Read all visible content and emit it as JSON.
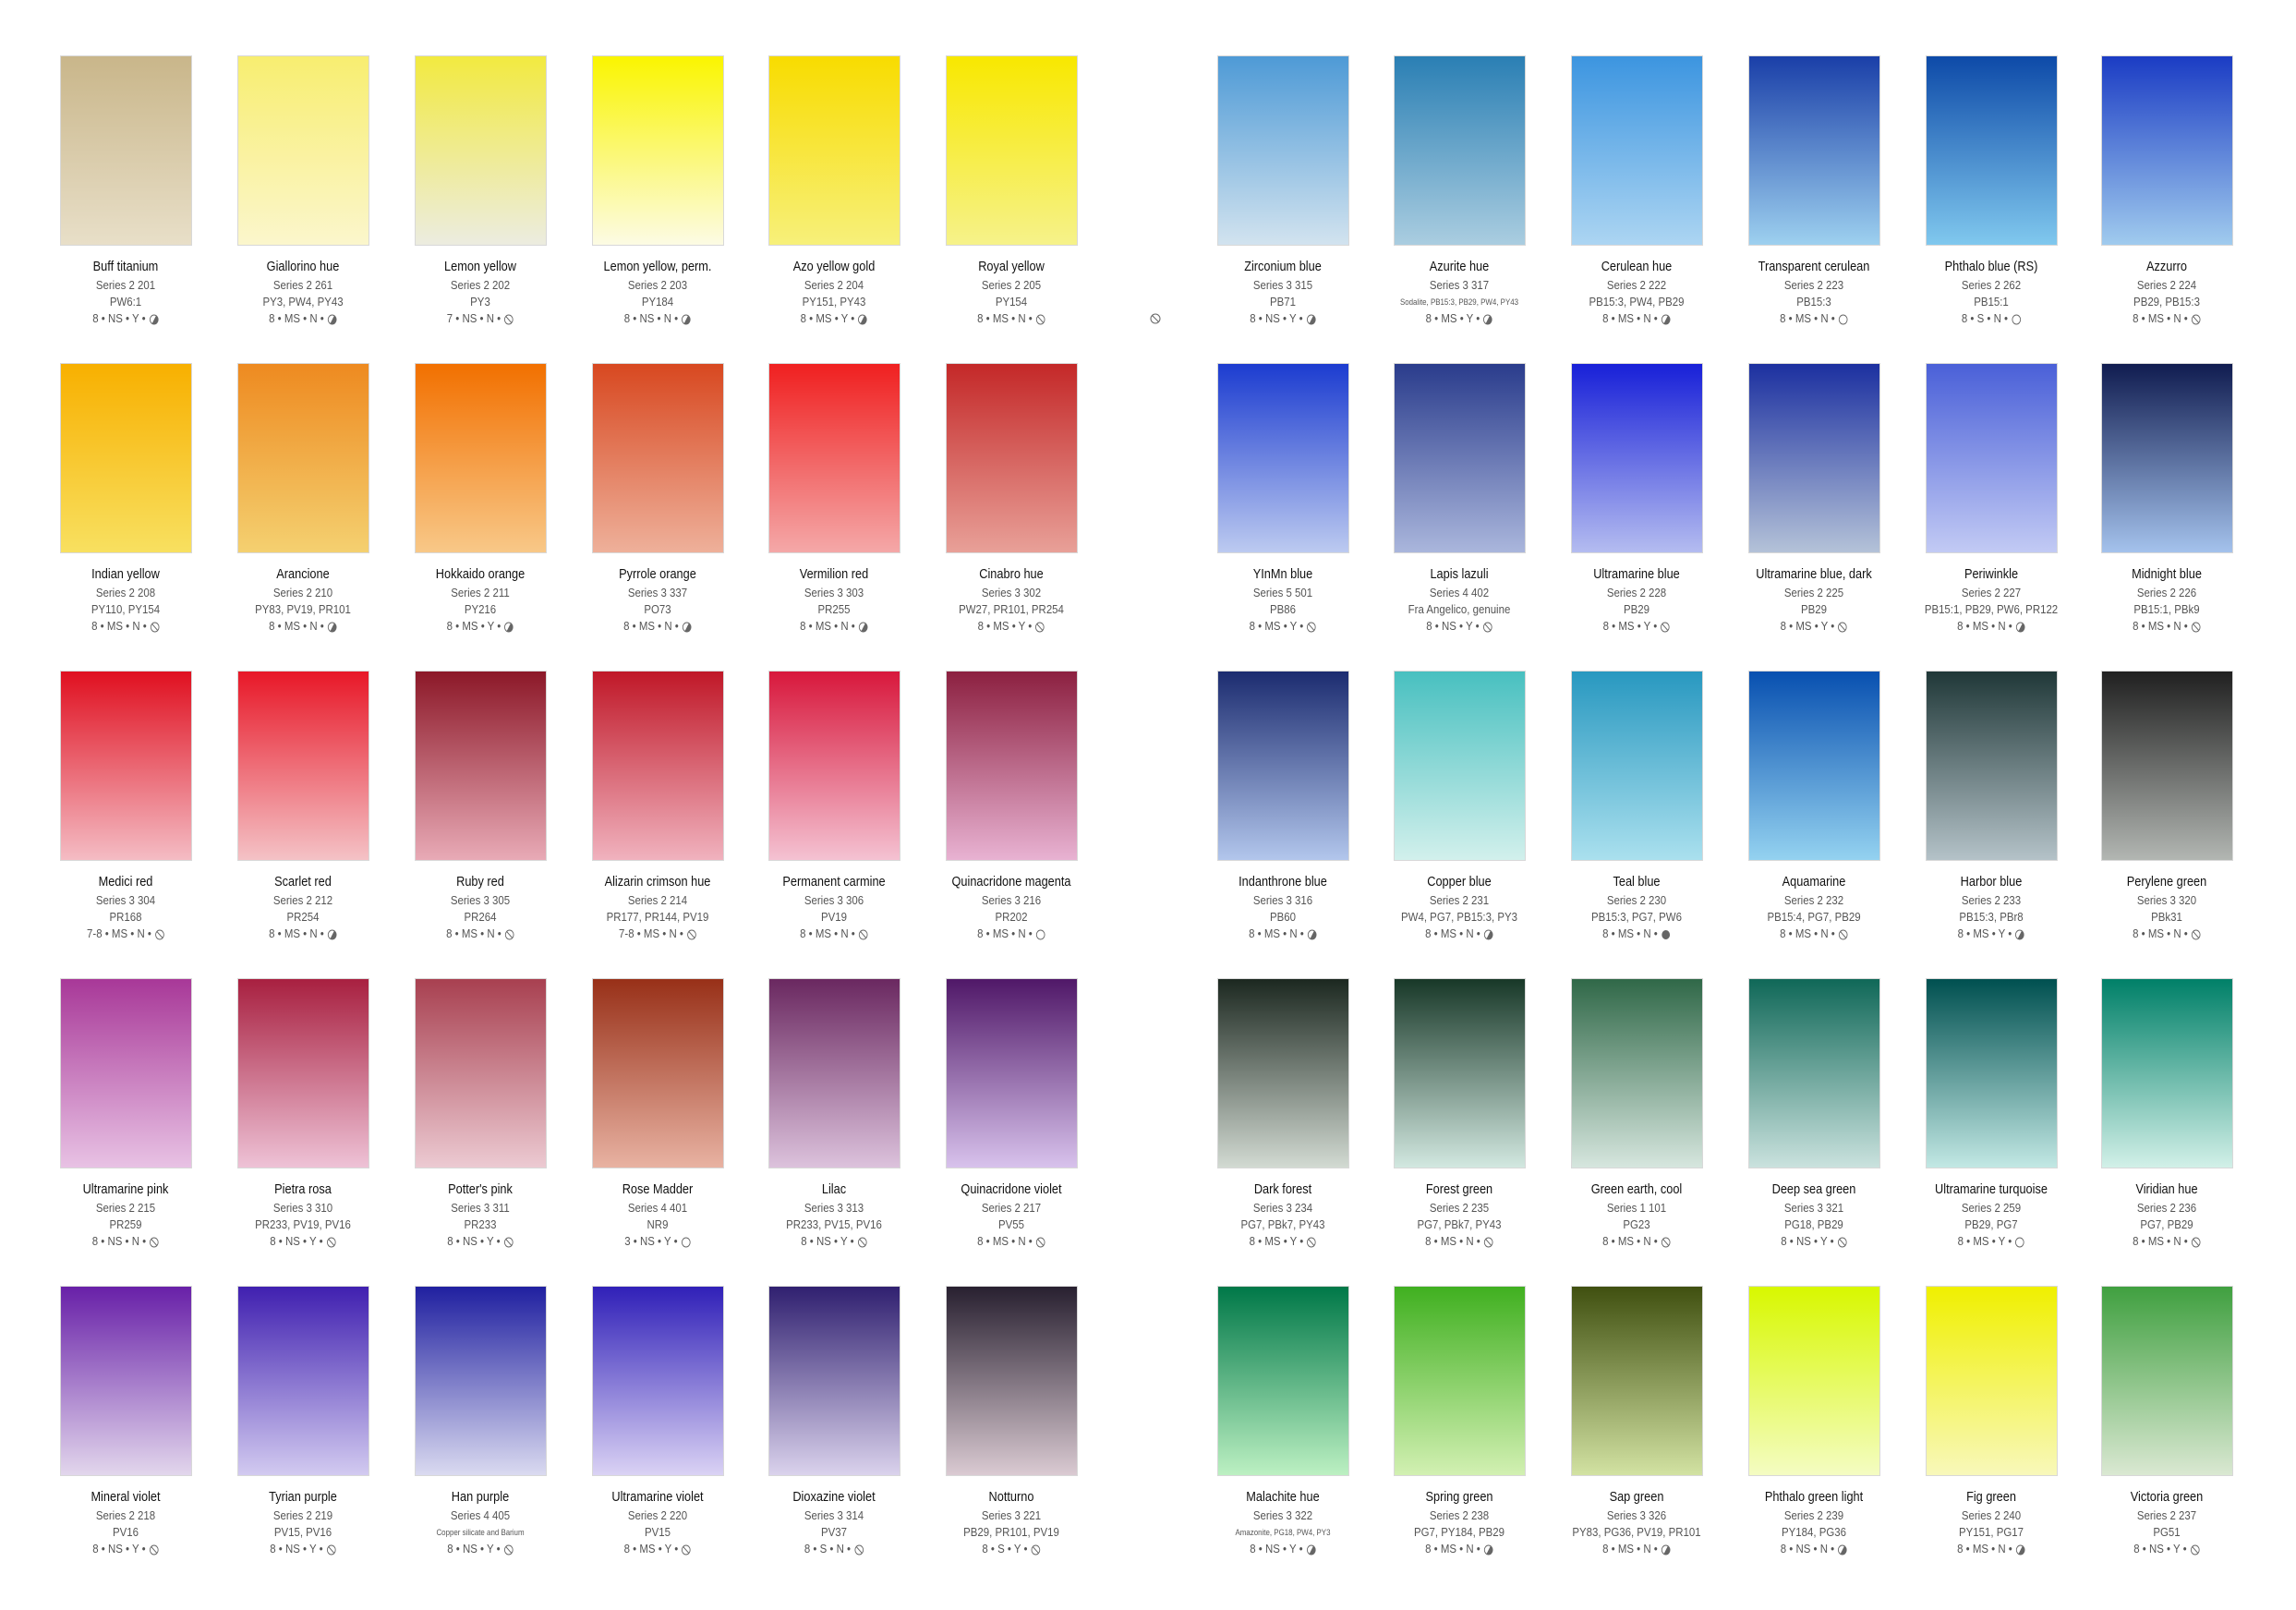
{
  "stray_icon": "slash",
  "icon_legend": {
    "full": "filled-circle",
    "half": "half-filled-circle",
    "empty": "empty-circle",
    "slash": "slashed-circle"
  },
  "rows": [
    {
      "left": [
        {
          "name": "Buff titanium",
          "series": "Series 2   201",
          "pigments": "PW6:1",
          "rating": "8 • NS • Y •",
          "icon": "half",
          "top": "#c9b68a",
          "bottom": "#e8dfc8"
        },
        {
          "name": "Giallorino hue",
          "series": "Series 2  261",
          "pigments": "PY3, PW4, PY43",
          "rating": "8 • MS • N •",
          "icon": "half",
          "top": "#f8ee70",
          "bottom": "#fbf6cc"
        },
        {
          "name": "Lemon yellow",
          "series": "Series 2   202",
          "pigments": "PY3",
          "rating": "7 • NS • N •",
          "icon": "slash",
          "top": "#f2ea40",
          "bottom": "#ecece0"
        },
        {
          "name": "Lemon yellow, perm.",
          "series": "Series 2  203",
          "pigments": "PY184",
          "rating": "8 • NS • N •",
          "icon": "half",
          "top": "#faf500",
          "bottom": "#fcfbe4"
        },
        {
          "name": "Azo yellow gold",
          "series": "Series 2   204",
          "pigments": "PY151, PY43",
          "rating": "8 • MS • Y •",
          "icon": "half",
          "top": "#f8dc00",
          "bottom": "#f7f07a"
        },
        {
          "name": "Royal yellow",
          "series": "Series 2   205",
          "pigments": "PY154",
          "rating": "8 • MS • N •",
          "icon": "slash",
          "top": "#f8e800",
          "bottom": "#f6f28a"
        }
      ],
      "right": [
        {
          "name": "Zirconium blue",
          "series": "Series 3   315",
          "pigments": "PB71",
          "rating": "8 • NS • Y •",
          "icon": "half",
          "top": "#4e9ad6",
          "bottom": "#d2e3ef"
        },
        {
          "name": "Azurite hue",
          "series": "Series 3   317",
          "pigments": "Sodalite, PB15:3, PB29, PW4, PY43",
          "small": true,
          "rating": "8 • MS • Y •",
          "icon": "half",
          "top": "#2a7fb4",
          "bottom": "#aacde0"
        },
        {
          "name": "Cerulean hue",
          "series": "Series 2   222",
          "pigments": "PB15:3, PW4, PB29",
          "rating": "8 • MS • N •",
          "icon": "half",
          "top": "#3c95e0",
          "bottom": "#acd5f2"
        },
        {
          "name": "Transparent cerulean",
          "series": "Series 2   223",
          "pigments": "PB15:3",
          "rating": "8 • MS • N •",
          "icon": "empty",
          "top": "#1a3fa8",
          "bottom": "#9dd0ef"
        },
        {
          "name": "Phthalo blue (RS)",
          "series": "Series 2   262",
          "pigments": "PB15:1",
          "rating": "8 • S • N •",
          "icon": "empty",
          "top": "#0d4aa8",
          "bottom": "#80c8ee"
        },
        {
          "name": "Azzurro",
          "series": "Series 2   224",
          "pigments": "PB29, PB15:3",
          "rating": "8 • MS • N •",
          "icon": "slash",
          "top": "#1b3cc4",
          "bottom": "#a0cbee"
        }
      ]
    },
    {
      "left": [
        {
          "name": "Indian yellow",
          "series": "Series 2   208",
          "pigments": "PY110, PY154",
          "rating": "8 • MS • N •",
          "icon": "slash",
          "top": "#f8b000",
          "bottom": "#f8e060"
        },
        {
          "name": "Arancione",
          "series": "Series 2   210",
          "pigments": "PY83, PV19, PR101",
          "rating": "8 • MS • N •",
          "icon": "half",
          "top": "#ee8a20",
          "bottom": "#f4d070"
        },
        {
          "name": "Hokkaido orange",
          "series": "Series 2   211",
          "pigments": "PY216",
          "rating": "8 • MS • Y •",
          "icon": "half",
          "top": "#f27000",
          "bottom": "#f8c888"
        },
        {
          "name": "Pyrrole orange",
          "series": "Series 3   337",
          "pigments": "PO73",
          "rating": "8 • MS • N •",
          "icon": "half",
          "top": "#d84820",
          "bottom": "#eeb09a"
        },
        {
          "name": "Vermilion red",
          "series": "Series 3   303",
          "pigments": "PR255",
          "rating": "8 • MS • N •",
          "icon": "half",
          "top": "#f02020",
          "bottom": "#f4a8a8"
        },
        {
          "name": "Cinabro hue",
          "series": "Series 3   302",
          "pigments": "PW27, PR101, PR254",
          "rating": "8 • MS • Y •",
          "icon": "slash",
          "top": "#c42828",
          "bottom": "#e8a098"
        }
      ],
      "right": [
        {
          "name": "YInMn blue",
          "series": "Series 5   501",
          "pigments": "PB86",
          "rating": "8 • MS • Y •",
          "icon": "slash",
          "top": "#1c3cd0",
          "bottom": "#bccaf0"
        },
        {
          "name": "Lapis lazuli",
          "series": "Series 4   402",
          "pigments": "Fra Angelico, genuine",
          "rating": "8 • NS • Y •",
          "icon": "slash",
          "top": "#2a3c8c",
          "bottom": "#aab6dc"
        },
        {
          "name": "Ultramarine blue",
          "series": "Series 2   228",
          "pigments": "PB29",
          "rating": "8 • MS • Y •",
          "icon": "slash",
          "top": "#1820d8",
          "bottom": "#b4bcf0"
        },
        {
          "name": "Ultramarine blue, dark",
          "series": "Series 2   225",
          "pigments": "PB29",
          "rating": "8 • MS • Y •",
          "icon": "slash",
          "top": "#1c30a0",
          "bottom": "#b4c2d8"
        },
        {
          "name": "Periwinkle",
          "series": "Series 2   227",
          "pigments": "PB15:1, PB29, PW6, PR122",
          "rating": "8 • MS • N •",
          "icon": "half",
          "top": "#4a60d8",
          "bottom": "#c2caf4"
        },
        {
          "name": "Midnight blue",
          "series": "Series 2   226",
          "pigments": "PB15:1, PBk9",
          "rating": "8 • MS • N •",
          "icon": "slash",
          "top": "#101c50",
          "bottom": "#a4c2ec"
        }
      ]
    },
    {
      "left": [
        {
          "name": "Medici red",
          "series": "Series 3   304",
          "pigments": "PR168",
          "rating": "7-8 • MS • N •",
          "icon": "slash",
          "top": "#e01020",
          "bottom": "#f4bcc4"
        },
        {
          "name": "Scarlet red",
          "series": "Series 2   212",
          "pigments": "PR254",
          "rating": "8 • MS • N •",
          "icon": "half",
          "top": "#e81828",
          "bottom": "#f4c2c6"
        },
        {
          "name": "Ruby red",
          "series": "Series 3   305",
          "pigments": "PR264",
          "rating": "8 • MS • N •",
          "icon": "slash",
          "top": "#8c1828",
          "bottom": "#e8aab6"
        },
        {
          "name": "Alizarin crimson hue",
          "series": "Series 2   214",
          "pigments": "PR177, PR144, PV19",
          "rating": "7-8 • MS • N •",
          "icon": "slash",
          "top": "#c01828",
          "bottom": "#f0b2be"
        },
        {
          "name": "Permanent carmine",
          "series": "Series 3   306",
          "pigments": "PV19",
          "rating": "8 • MS • N •",
          "icon": "slash",
          "top": "#d8183c",
          "bottom": "#f4c2d2"
        },
        {
          "name": "Quinacridone magenta",
          "series": "Series 3   216",
          "pigments": "PR202",
          "rating": "8 • MS • N •",
          "icon": "empty",
          "top": "#8c2040",
          "bottom": "#e8b2d2"
        }
      ],
      "right": [
        {
          "name": "Indanthrone blue",
          "series": "Series 3   316",
          "pigments": "PB60",
          "rating": "8 • MS • N •",
          "icon": "half",
          "top": "#1c2c70",
          "bottom": "#b2c6ec"
        },
        {
          "name": "Copper blue",
          "series": "Series 2   231",
          "pigments": "PW4, PG7, PB15:3, PY3",
          "rating": "8 • MS • N •",
          "icon": "half",
          "top": "#48c0c0",
          "bottom": "#d2f0ec"
        },
        {
          "name": "Teal blue",
          "series": "Series 2   230",
          "pigments": "PB15:3, PG7, PW6",
          "rating": "8 • MS • N •",
          "icon": "full",
          "top": "#2898c0",
          "bottom": "#aae0ee"
        },
        {
          "name": "Aquamarine",
          "series": "Series 2   232",
          "pigments": "PB15:4, PG7, PB29",
          "rating": "8 • MS • N •",
          "icon": "slash",
          "top": "#0850b0",
          "bottom": "#94d2f0"
        },
        {
          "name": "Harbor blue",
          "series": "Series 2   233",
          "pigments": "PB15:3, PBr8",
          "rating": "8 • MS • Y •",
          "icon": "half",
          "top": "#203838",
          "bottom": "#b4c2c8"
        },
        {
          "name": "Perylene green",
          "series": "Series 3   320",
          "pigments": "PBk31",
          "rating": "8 • MS • N •",
          "icon": "slash",
          "top": "#202020",
          "bottom": "#b2b6b2"
        }
      ]
    },
    {
      "left": [
        {
          "name": "Ultramarine pink",
          "series": "Series 2   215",
          "pigments": "PR259",
          "rating": "8 • NS • N •",
          "icon": "slash",
          "top": "#a83898",
          "bottom": "#e8c2e4"
        },
        {
          "name": "Pietra rosa",
          "series": "Series 3   310",
          "pigments": "PR233, PV19, PV16",
          "rating": "8 • NS • Y •",
          "icon": "slash",
          "top": "#a82040",
          "bottom": "#eec2d6"
        },
        {
          "name": "Potter's pink",
          "series": "Series 3   311",
          "pigments": "PR233",
          "rating": "8 • NS • Y •",
          "icon": "slash",
          "top": "#a84050",
          "bottom": "#eccad2"
        },
        {
          "name": "Rose Madder",
          "series": "Series 4   401",
          "pigments": "NR9",
          "rating": "3 • NS • Y •",
          "icon": "empty",
          "top": "#983018",
          "bottom": "#e8b2a2"
        },
        {
          "name": "Lilac",
          "series": "Series 3   313",
          "pigments": "PR233, PV15, PV16",
          "rating": "8 • NS • Y •",
          "icon": "slash",
          "top": "#6a2860",
          "bottom": "#dcc2dc"
        },
        {
          "name": "Quinacridone violet",
          "series": "Series 2   217",
          "pigments": "PV55",
          "rating": "8 • MS • N •",
          "icon": "slash",
          "top": "#501868",
          "bottom": "#d8c2ec"
        }
      ],
      "right": [
        {
          "name": "Dark forest",
          "series": "Series 3   234",
          "pigments": "PG7, PBk7, PY43",
          "rating": "8 • MS • Y •",
          "icon": "slash",
          "top": "#1c2820",
          "bottom": "#d2dad2"
        },
        {
          "name": "Forest green",
          "series": "Series 2   235",
          "pigments": "PG7, PBk7, PY43",
          "rating": "8 • MS • N •",
          "icon": "slash",
          "top": "#183828",
          "bottom": "#d2e8e0"
        },
        {
          "name": "Green earth, cool",
          "series": "Series 1   101",
          "pigments": "PG23",
          "rating": "8 • MS • N •",
          "icon": "slash",
          "top": "#306848",
          "bottom": "#d6e6de"
        },
        {
          "name": "Deep sea green",
          "series": "Series 3   321",
          "pigments": "PG18, PB29",
          "rating": "8 • NS • Y •",
          "icon": "slash",
          "top": "#106858",
          "bottom": "#cae2de"
        },
        {
          "name": "Ultramarine turquoise",
          "series": "Series 2   259",
          "pigments": "PB29, PG7",
          "rating": "8 • MS • Y •",
          "icon": "empty",
          "top": "#005050",
          "bottom": "#c2e8e4"
        },
        {
          "name": "Viridian hue",
          "series": "Series 2   236",
          "pigments": "PG7, PB29",
          "rating": "8 • MS • N •",
          "icon": "slash",
          "top": "#008068",
          "bottom": "#d2f0e8"
        }
      ]
    },
    {
      "left": [
        {
          "name": "Mineral violet",
          "series": "Series 2   218",
          "pigments": "PV16",
          "rating": "8 • NS • Y •",
          "icon": "slash",
          "top": "#6820a8",
          "bottom": "#e2d6ec"
        },
        {
          "name": "Tyrian purple",
          "series": "Series 2   219",
          "pigments": "PV15, PV16",
          "rating": "8 • NS • Y •",
          "icon": "slash",
          "top": "#4020b0",
          "bottom": "#d2caf0"
        },
        {
          "name": "Han purple",
          "series": "Series 4   405",
          "pigments": "Copper silicate and Barium",
          "small": true,
          "rating": "8 • NS • Y •",
          "icon": "slash",
          "top": "#2020a0",
          "bottom": "#dadaf0"
        },
        {
          "name": "Ultramarine violet",
          "series": "Series 2   220",
          "pigments": "PV15",
          "rating": "8 • MS • Y •",
          "icon": "slash",
          "top": "#3020b8",
          "bottom": "#dad2f4"
        },
        {
          "name": "Dioxazine violet",
          "series": "Series 3   314",
          "pigments": "PV37",
          "rating": "8 • S • N •",
          "icon": "slash",
          "top": "#302070",
          "bottom": "#dad2ec"
        },
        {
          "name": "Notturno",
          "series": "Series 3   221",
          "pigments": "PB29, PR101, PV19",
          "rating": "8 • S • Y •",
          "icon": "slash",
          "top": "#282030",
          "bottom": "#dacad2"
        }
      ],
      "right": [
        {
          "name": "Malachite hue",
          "series": "Series 3   322",
          "pigments": "Amazonite, PG18, PW4, PY3",
          "small": true,
          "rating": "8 • NS • Y •",
          "icon": "half",
          "top": "#007848",
          "bottom": "#bcf0c2"
        },
        {
          "name": "Spring green",
          "series": "Series 2   238",
          "pigments": "PG7, PY184, PB29",
          "rating": "8 • MS • N •",
          "icon": "half",
          "top": "#40b020",
          "bottom": "#d2f0b2"
        },
        {
          "name": "Sap green",
          "series": "Series 3   326",
          "pigments": "PY83, PG36, PV19, PR101",
          "rating": "8 • MS • N •",
          "icon": "half",
          "top": "#405010",
          "bottom": "#d2e2a2"
        },
        {
          "name": "Phthalo green light",
          "series": "Series 2   239",
          "pigments": "PY184, PG36",
          "rating": "8 • NS • N •",
          "icon": "half",
          "top": "#d8f800",
          "bottom": "#f4fcc2"
        },
        {
          "name": "Fig green",
          "series": "Series 2   240",
          "pigments": "PY151, PG17",
          "rating": "8 • MS • N •",
          "icon": "half",
          "top": "#f0f000",
          "bottom": "#f8f8ba"
        },
        {
          "name": "Victoria green",
          "series": "Series 2   237",
          "pigments": "PG51",
          "rating": "8 • NS • Y •",
          "icon": "slash",
          "top": "#40a040",
          "bottom": "#dae8d2"
        }
      ]
    }
  ]
}
